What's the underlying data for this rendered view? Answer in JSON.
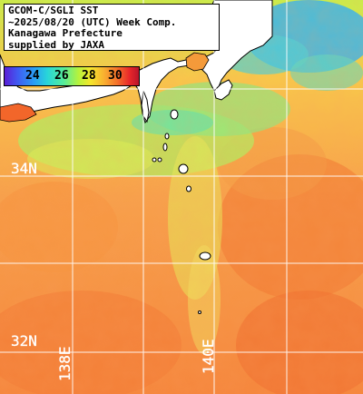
{
  "title": {
    "lines": [
      "GCOM-C/SGLI SST",
      "~2025/08/20 (UTC) Week Comp.",
      "Kanagawa Prefecture",
      "supplied by JAXA"
    ]
  },
  "colorbar": {
    "ticks": [
      "24",
      "26",
      "28",
      "30"
    ],
    "colors": [
      "#5a1fd6",
      "#2a9ef5",
      "#56ec9a",
      "#f4e62c",
      "#f4702a",
      "#b8142a"
    ]
  },
  "grid": {
    "lat_labels": [
      "34N",
      "32N"
    ],
    "lon_labels": [
      "138E",
      "140E"
    ]
  },
  "palette": {
    "land": "#ffffff",
    "coast": "#000000",
    "grid": "#ffffff",
    "warm_sea": "#f7a04a",
    "hot_sea": "#f06a2c",
    "cool_sea": "#a8ee6a",
    "cold_sea": "#36b4f0"
  }
}
